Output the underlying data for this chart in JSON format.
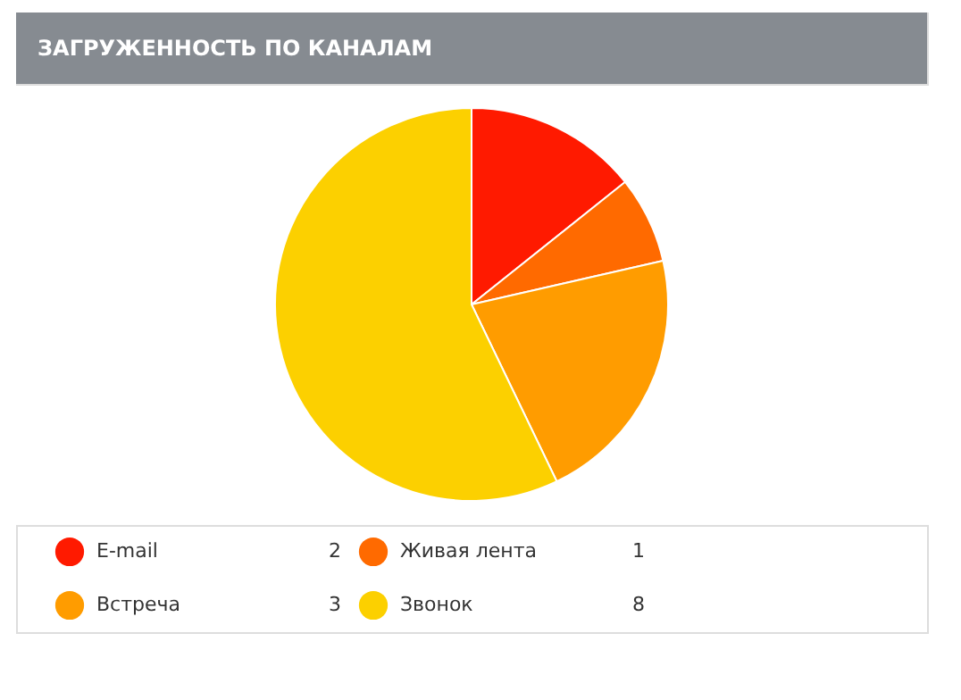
{
  "chart_data": {
    "type": "pie",
    "title": "ЗАГРУЖЕННОСТЬ ПО КАНАЛАМ",
    "categories": [
      "E-mail",
      "Живая лента",
      "Встреча",
      "Звонок"
    ],
    "values": [
      2,
      1,
      3,
      8
    ],
    "colors": [
      "#ff1a00",
      "#ff6a00",
      "#ff9c00",
      "#fcd000"
    ],
    "legend": "bottom",
    "data_labels": true
  }
}
